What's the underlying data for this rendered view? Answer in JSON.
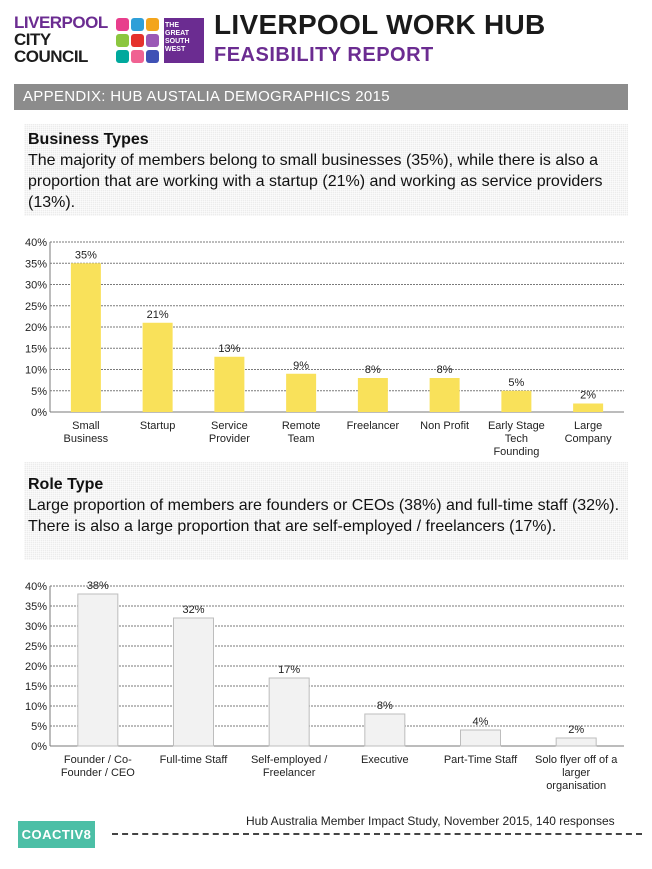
{
  "header": {
    "logo_line1": "LIVERPOOL",
    "logo_line2": "CITY",
    "logo_line3": "COUNCIL",
    "gsw_logo": "THE GREAT SOUTH WEST",
    "title": "LIVERPOOL WORK HUB",
    "subtitle": "FEASIBILITY REPORT"
  },
  "banner": "APPENDIX: HUB AUSTALIA DEMOGRAPHICS 2015",
  "section1": {
    "title": "Business Types",
    "body": "The majority of members belong to small businesses (35%), while there is also a proportion that are working with a startup (21%) and working as service providers (13%)."
  },
  "section2": {
    "title": "Role Type",
    "body": "Large proportion of members are founders or CEOs (38%) and full-time staff (32%).  There is also a large proportion that are self-employed / freelancers (17%)."
  },
  "chart_data": [
    {
      "type": "bar",
      "categories": [
        [
          "Small",
          "Business"
        ],
        [
          "Startup"
        ],
        [
          "Service",
          "Provider"
        ],
        [
          "Remote",
          "Team"
        ],
        [
          "Freelancer"
        ],
        [
          "Non Profit"
        ],
        [
          "Early Stage",
          "Tech",
          "Founding"
        ],
        [
          "Large",
          "Company"
        ]
      ],
      "values": [
        35,
        21,
        13,
        9,
        8,
        8,
        5,
        2
      ],
      "data_labels": [
        "35%",
        "21%",
        "13%",
        "9%",
        "8%",
        "8%",
        "5%",
        "2%"
      ],
      "yticks": [
        "0%",
        "5%",
        "10%",
        "15%",
        "20%",
        "25%",
        "30%",
        "35%",
        "40%"
      ],
      "ylim": [
        0,
        40
      ],
      "grid": true,
      "bar_color": "#f9e15a"
    },
    {
      "type": "bar",
      "categories": [
        [
          "Founder / Co-",
          "Founder / CEO"
        ],
        [
          "Full-time Staff"
        ],
        [
          "Self-employed /",
          "Freelancer"
        ],
        [
          "Executive"
        ],
        [
          "Part-Time Staff"
        ],
        [
          "Solo flyer off of a",
          "larger",
          "organisation"
        ]
      ],
      "values": [
        38,
        32,
        17,
        8,
        4,
        2
      ],
      "data_labels": [
        "38%",
        "32%",
        "17%",
        "8%",
        "4%",
        "2%"
      ],
      "yticks": [
        "0%",
        "5%",
        "10%",
        "15%",
        "20%",
        "25%",
        "30%",
        "35%",
        "40%"
      ],
      "ylim": [
        0,
        40
      ],
      "grid": true,
      "bar_color": "#f2f2f2"
    }
  ],
  "footer": {
    "logo": "COACTIV8",
    "source": "Hub Australia Member Impact Study, November 2015, 140 responses"
  },
  "colors": {
    "brand_purple": "#6b2c91",
    "banner_gray": "#8c8c8c",
    "footer_teal": "#4cbfa6"
  }
}
